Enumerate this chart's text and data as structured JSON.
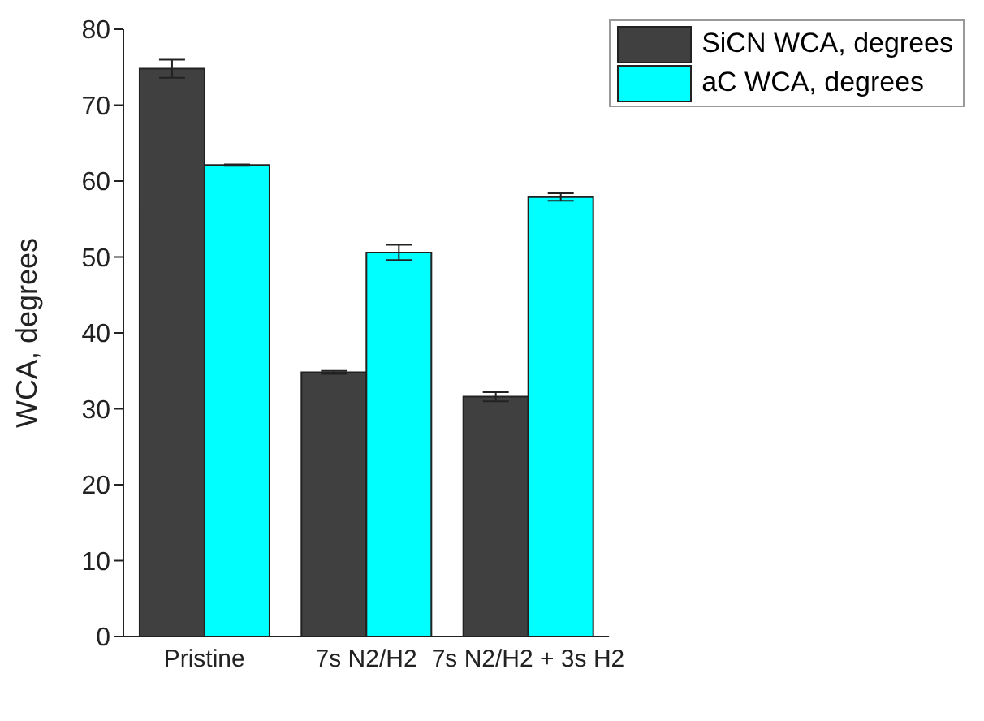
{
  "chart_data": {
    "type": "bar",
    "ylabel": "WCA, degrees",
    "categories": [
      "Pristine",
      "7s N2/H2",
      "7s N2/H2 + 3s H2"
    ],
    "series": [
      {
        "name": "SiCN WCA, degrees",
        "color": "#404040",
        "values": [
          74.8,
          34.8,
          31.6
        ],
        "errors": [
          1.2,
          0.2,
          0.6
        ]
      },
      {
        "name": "aC WCA, degrees",
        "color": "#00ffff",
        "values": [
          62.1,
          50.6,
          57.9
        ],
        "errors": [
          0.1,
          1.0,
          0.5
        ]
      }
    ],
    "ylim": [
      0,
      80
    ],
    "yticks": [
      0,
      10,
      20,
      30,
      40,
      50,
      60,
      70,
      80
    ],
    "grid": false,
    "legend": "top right"
  }
}
